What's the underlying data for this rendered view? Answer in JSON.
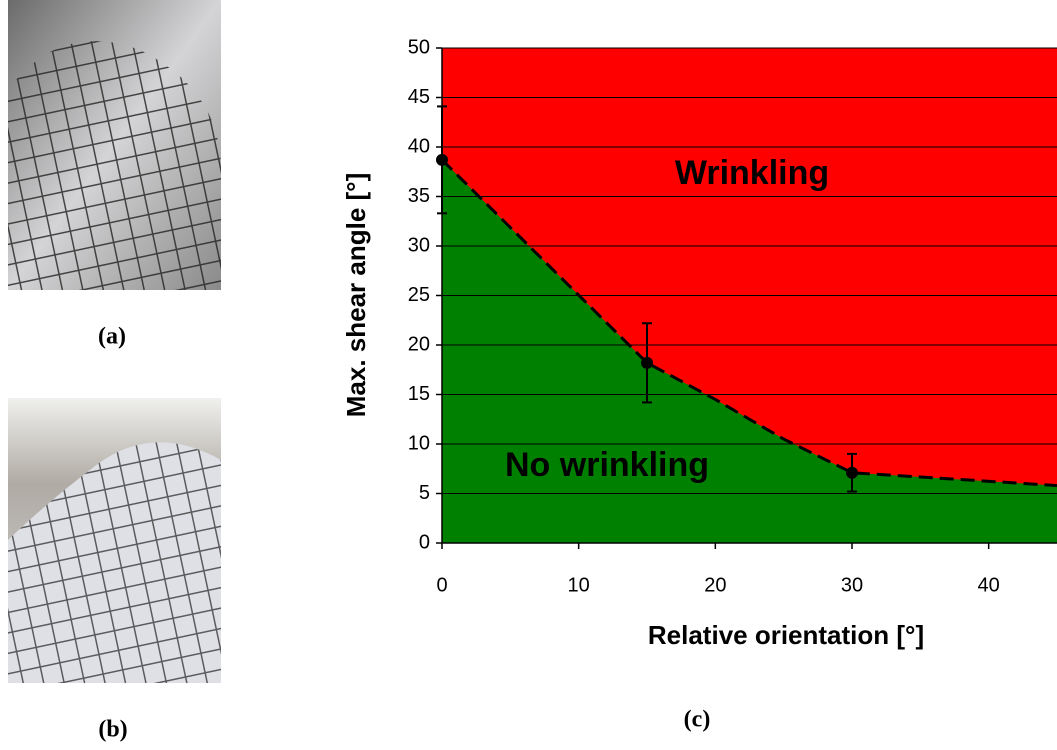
{
  "chart_data": {
    "type": "line",
    "xlabel": "Relative orientation [°]",
    "ylabel": "Max. shear angle [°]",
    "xlim": [
      0,
      45
    ],
    "ylim": [
      0,
      50
    ],
    "xticks": [
      0,
      10,
      20,
      30,
      40
    ],
    "yticks": [
      0,
      5,
      10,
      15,
      20,
      25,
      30,
      35,
      40,
      45,
      50
    ],
    "grid": true,
    "upper_color": "#ff0000",
    "lower_color": "#008000",
    "annotations": [
      "Wrinkling",
      "No wrinkling"
    ],
    "series": [
      {
        "x": [
          0,
          15,
          20,
          25,
          30,
          45
        ],
        "values": [
          38.7,
          18.2,
          14.5,
          10.5,
          7.1,
          5.8
        ],
        "color": "#000000",
        "dashed": true
      },
      {
        "x": [
          0,
          15,
          30
        ],
        "values": [
          38.7,
          18.2,
          7.1
        ],
        "errors": [
          5.4,
          4,
          1.9
        ],
        "color": "#000000"
      }
    ]
  },
  "captions": [
    "(a)",
    "(b)",
    "(c)"
  ]
}
